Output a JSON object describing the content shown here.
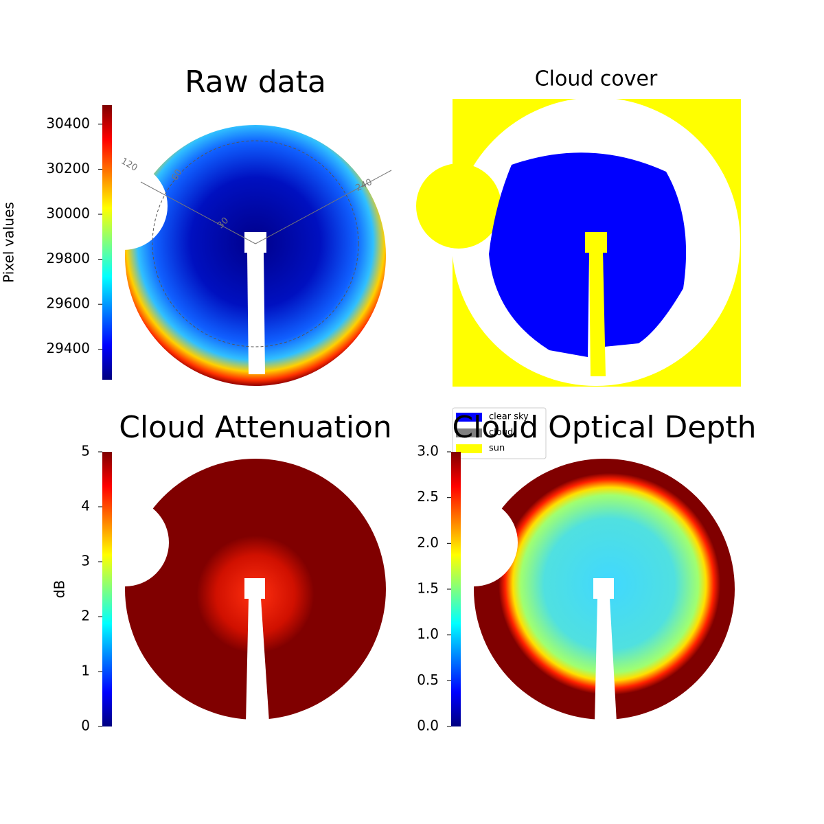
{
  "chart_data": [
    {
      "type": "image",
      "title": "Raw data",
      "ylabel": "Pixel values",
      "colormap": "jet",
      "ylim": [
        29265,
        30485
      ],
      "yticks": [
        29400,
        29600,
        29800,
        30000,
        30200,
        30400
      ],
      "annotations": [
        "120",
        "60",
        "240",
        "30"
      ]
    },
    {
      "type": "image",
      "title": "Cloud cover",
      "legend": [
        {
          "name": "clear sky",
          "color": "#0000ff"
        },
        {
          "name": "cloud",
          "color": "#808080"
        },
        {
          "name": "sun",
          "color": "#ffff00"
        }
      ]
    },
    {
      "type": "image",
      "title": "Cloud Attenuation",
      "ylabel": "dB",
      "colormap": "jet",
      "ylim": [
        0,
        5
      ],
      "yticks": [
        0,
        1,
        2,
        3,
        4,
        5
      ]
    },
    {
      "type": "image",
      "title": "Cloud Optical Depth",
      "colormap": "jet",
      "ylim": [
        0,
        3
      ],
      "yticks": [
        {
          "value": 0,
          "label": "0.0"
        },
        0.5,
        {
          "value": 1,
          "label": "1.0"
        },
        1.5,
        {
          "value": 2,
          "label": "2.0"
        },
        2.5,
        {
          "value": 3,
          "label": "3.0"
        }
      ]
    }
  ]
}
